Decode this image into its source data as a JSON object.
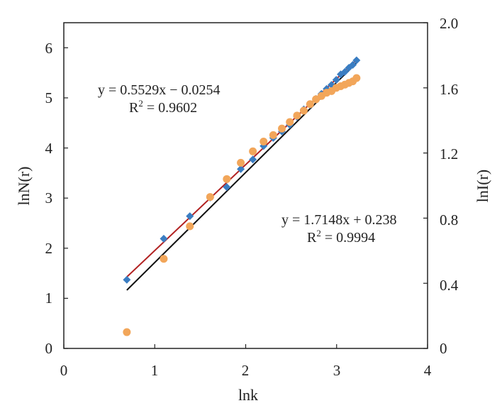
{
  "chart_data": {
    "type": "scatter",
    "xlabel": "lnk",
    "ylabel": "lnN(r)",
    "y2label": "lnI(r)",
    "xlim": [
      0,
      4
    ],
    "ylim": [
      0,
      6.5
    ],
    "y2lim": [
      0,
      2.0
    ],
    "x_ticks": [
      "0",
      "1",
      "2",
      "3",
      "4"
    ],
    "y_ticks": [
      "0",
      "1",
      "2",
      "3",
      "4",
      "5",
      "6"
    ],
    "y2_ticks": [
      "0",
      "0.4",
      "0.8",
      "1.2",
      "1.6",
      "2.0"
    ],
    "grid": false,
    "colors": {
      "blue_series": "#3a7dc2",
      "orange_series": "#f2a65a",
      "red_fit": "#b22222",
      "black_fit": "#111111"
    },
    "series": [
      {
        "axis": "left",
        "marker": "diamond",
        "color": "#3a7dc2",
        "x": [
          0.693,
          1.099,
          1.386,
          1.609,
          1.792,
          1.946,
          2.079,
          2.197,
          2.303,
          2.398,
          2.485,
          2.565,
          2.639,
          2.708,
          2.773,
          2.833,
          2.89,
          2.944,
          2.996,
          3.045,
          3.091,
          3.135,
          3.178,
          3.219
        ],
        "y": [
          1.37,
          2.19,
          2.64,
          3.01,
          3.22,
          3.58,
          3.77,
          4.04,
          4.2,
          4.33,
          4.46,
          4.62,
          4.77,
          4.86,
          4.98,
          5.08,
          5.18,
          5.26,
          5.36,
          5.47,
          5.52,
          5.6,
          5.66,
          5.75
        ]
      },
      {
        "axis": "right",
        "marker": "circle",
        "color": "#f2a65a",
        "x": [
          0.693,
          1.099,
          1.386,
          1.609,
          1.792,
          1.946,
          2.079,
          2.197,
          2.303,
          2.398,
          2.485,
          2.565,
          2.639,
          2.708,
          2.773,
          2.833,
          2.89,
          2.944,
          2.996,
          3.045,
          3.091,
          3.135,
          3.178,
          3.219
        ],
        "y": [
          0.1,
          0.55,
          0.75,
          0.93,
          1.04,
          1.14,
          1.21,
          1.27,
          1.31,
          1.35,
          1.39,
          1.43,
          1.46,
          1.5,
          1.53,
          1.55,
          1.57,
          1.58,
          1.6,
          1.61,
          1.62,
          1.63,
          1.64,
          1.66
        ]
      }
    ],
    "fits": [
      {
        "axis": "left",
        "color": "#b22222",
        "slope": 1.7148,
        "intercept": 0.238,
        "x_range": [
          0.693,
          3.219
        ]
      },
      {
        "axis": "right",
        "color": "#111111",
        "slope": 0.5529,
        "intercept": -0.0254,
        "x_range": [
          0.693,
          3.219
        ]
      }
    ],
    "annotations": [
      {
        "line1": "y = 0.5529x − 0.0254",
        "r2_prefix": "R",
        "r2_sup": "2",
        "r2_value": " = 0.9602"
      },
      {
        "line1": "y = 1.7148x + 0.238",
        "r2_prefix": "R",
        "r2_sup": "2",
        "r2_value": " = 0.9994"
      }
    ]
  }
}
